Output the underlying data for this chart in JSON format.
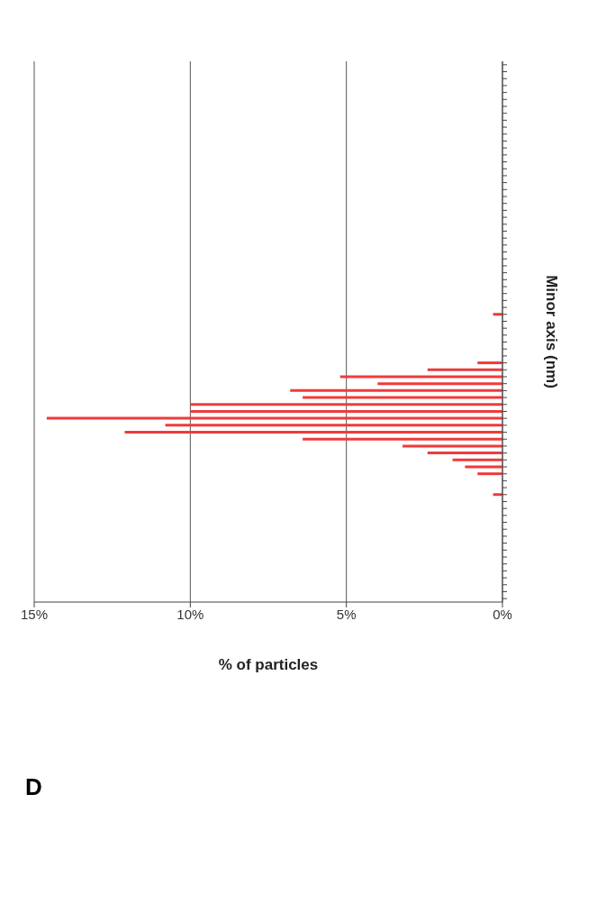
{
  "chart_data": {
    "type": "bar",
    "orientation": "horizontal",
    "xlabel": "% of particles",
    "ylabel": "Minor axis (nm)",
    "annotations": [
      "D"
    ],
    "categories": [
      null,
      null,
      null,
      null,
      null,
      null,
      null,
      null,
      null,
      null,
      null,
      null,
      null,
      null,
      null,
      null,
      null,
      null,
      null,
      null,
      null,
      null,
      null,
      null,
      null,
      null,
      null,
      null,
      null,
      null,
      null,
      null,
      null,
      null,
      null,
      null,
      null,
      null,
      null,
      null,
      null,
      null,
      null,
      null,
      null,
      null,
      null,
      null,
      null,
      null,
      null,
      null,
      null,
      null,
      null,
      null,
      null,
      null,
      null,
      null,
      null,
      null,
      null,
      null,
      null,
      null,
      null,
      null,
      null,
      null,
      null,
      null,
      null,
      null,
      null,
      null,
      null,
      null
    ],
    "values": [
      0,
      0,
      0,
      0,
      0,
      0,
      0,
      0,
      0,
      0,
      0,
      0,
      0,
      0,
      0,
      0,
      0,
      0,
      0,
      0,
      0,
      0,
      0,
      0,
      0,
      0,
      0,
      0,
      0,
      0,
      0,
      0,
      0,
      0,
      0,
      0,
      0.3,
      0,
      0,
      0,
      0,
      0,
      0,
      0.8,
      2.4,
      5.2,
      4.0,
      6.8,
      6.4,
      10.0,
      10.0,
      14.6,
      10.8,
      12.1,
      6.4,
      3.2,
      2.4,
      1.6,
      1.2,
      0.8,
      0,
      0,
      0.3,
      0,
      0,
      0,
      0,
      0,
      0,
      0,
      0,
      0,
      0,
      0,
      0,
      0,
      0,
      0
    ],
    "color": "#ee3b3b",
    "xlim": [
      15,
      0
    ],
    "xticks": [
      {
        "value": 15,
        "label": "15%"
      },
      {
        "value": 10,
        "label": "10%"
      },
      {
        "value": 5,
        "label": "5%"
      },
      {
        "value": 0,
        "label": "0%"
      }
    ],
    "grid": "x"
  }
}
